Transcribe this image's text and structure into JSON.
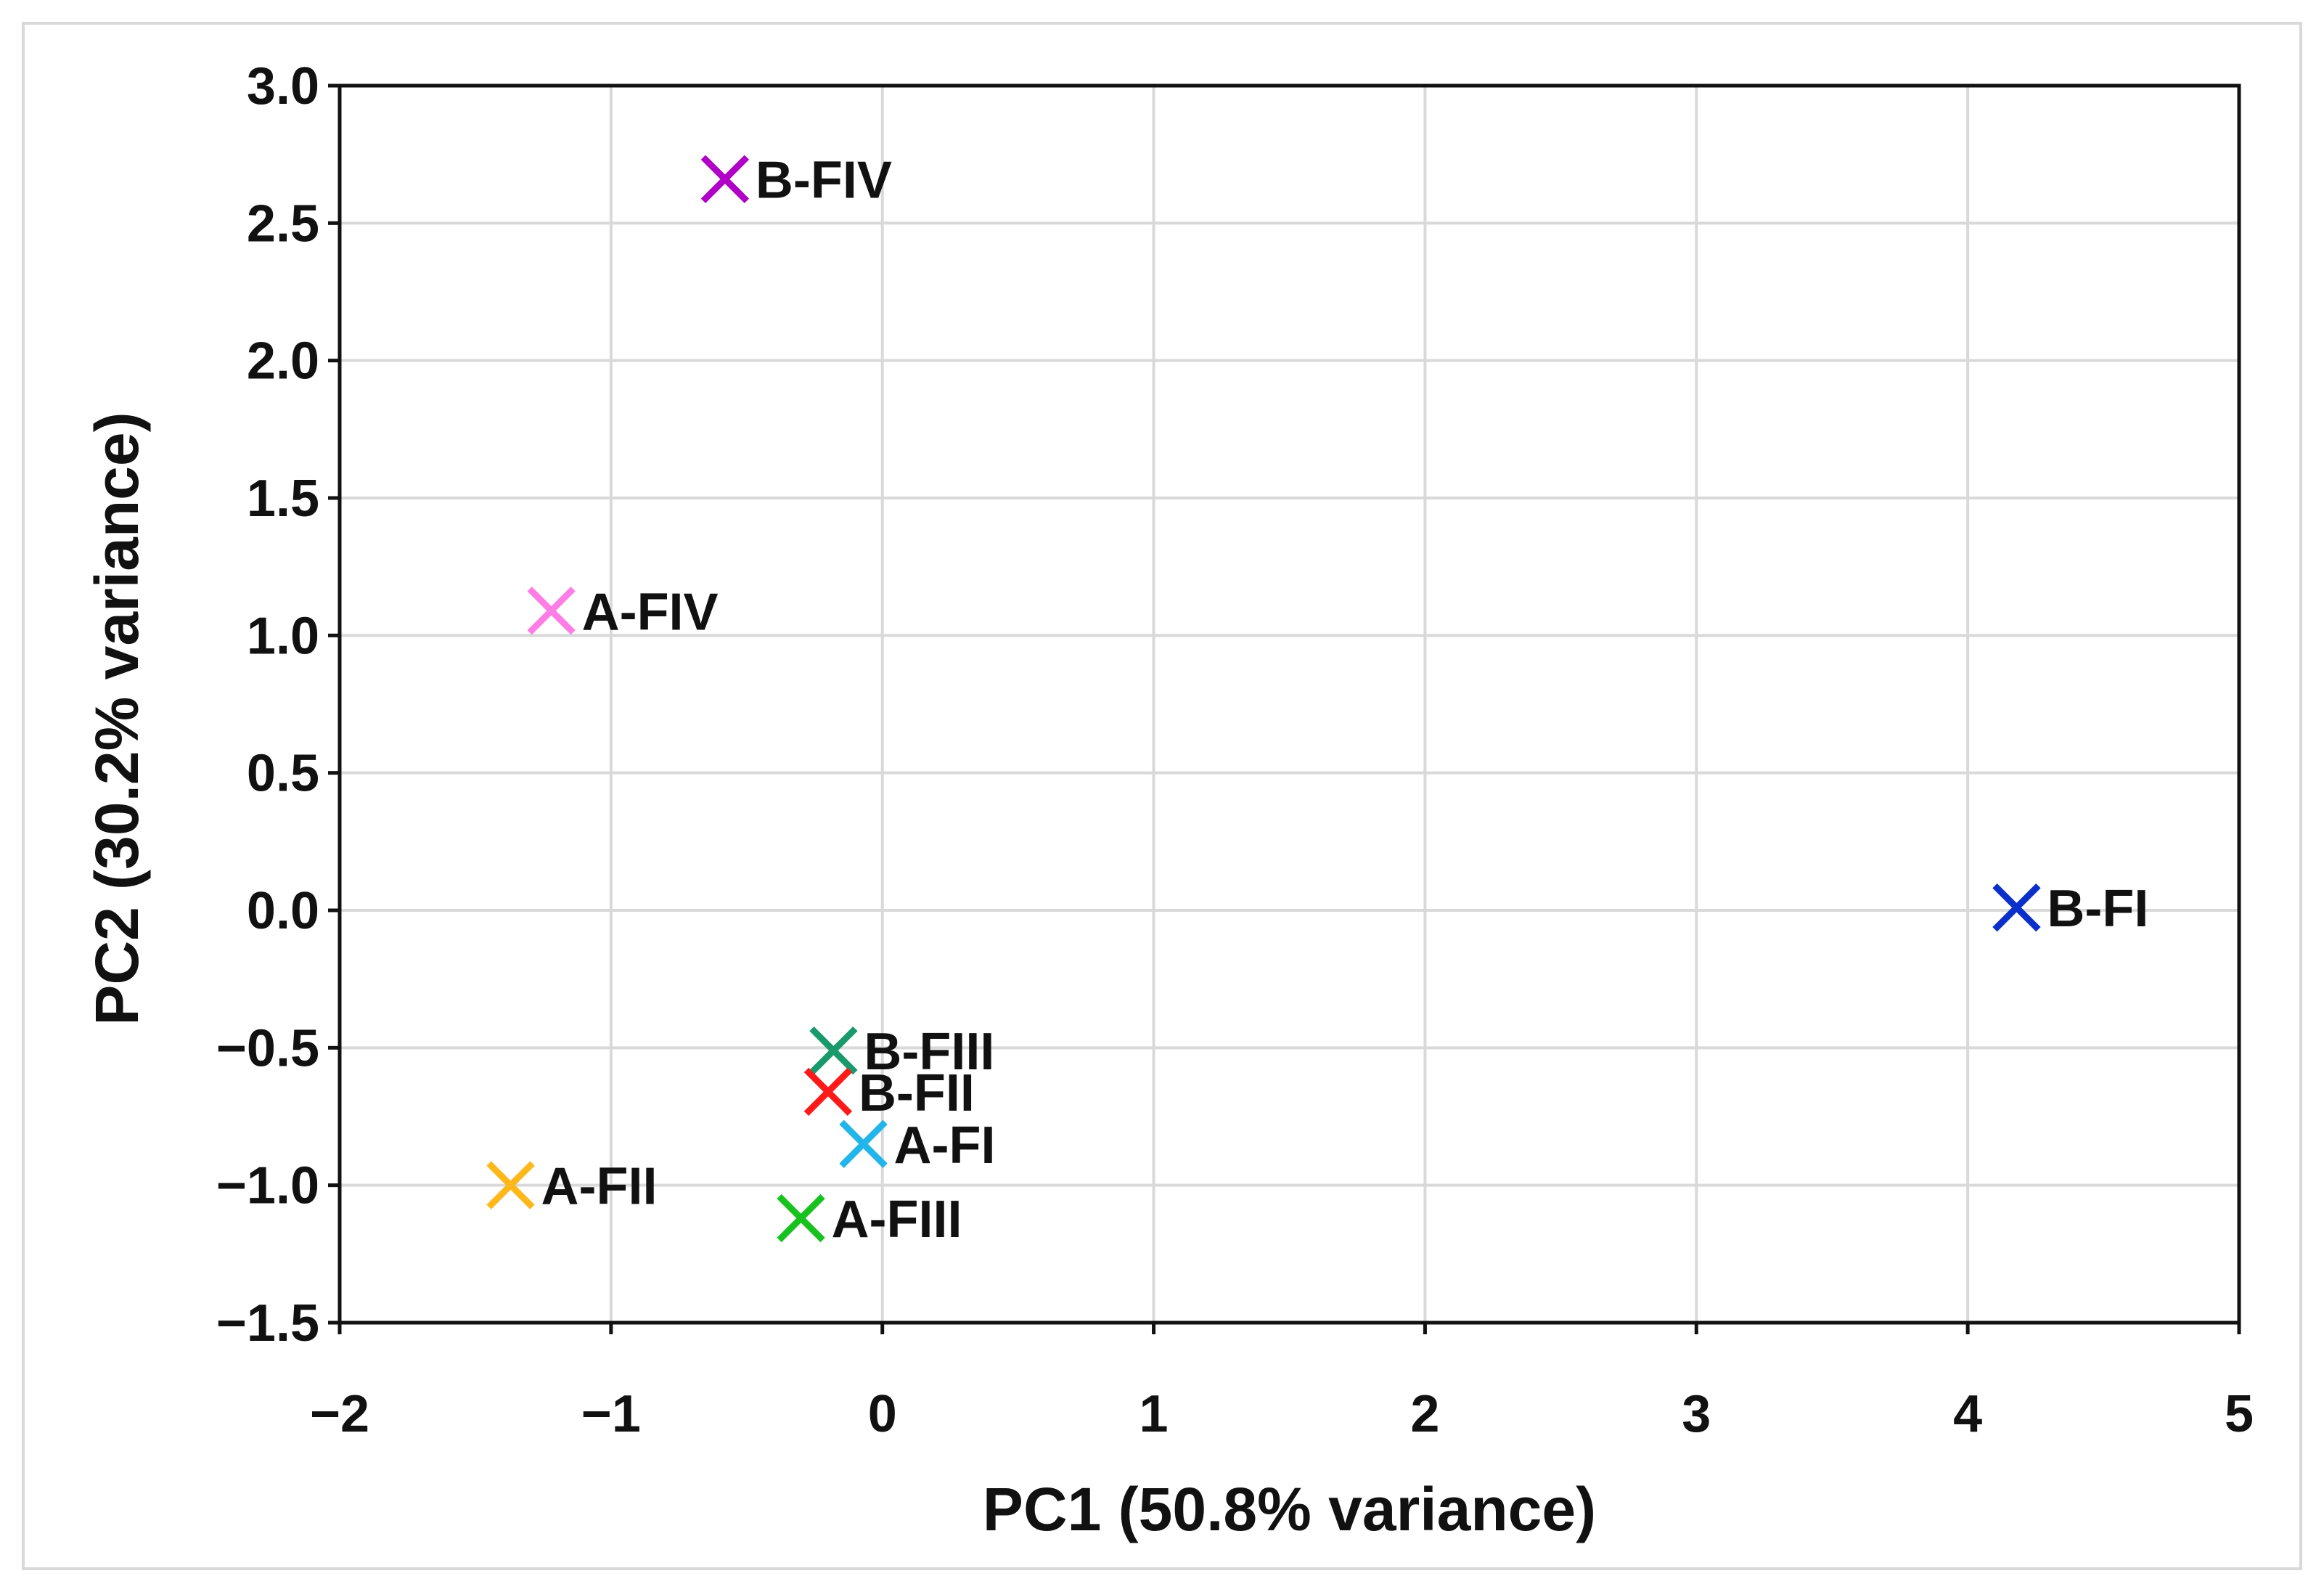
{
  "chart_data": {
    "type": "scatter",
    "title": "",
    "xlabel": "PC1 (50.8% variance)",
    "ylabel": "PC2 (30.2% variance)",
    "xlim": [
      -2,
      5
    ],
    "ylim": [
      -1.5,
      3.0
    ],
    "grid": true,
    "legend": "none",
    "x_ticks": [
      -2,
      -1,
      0,
      1,
      2,
      3,
      4,
      5
    ],
    "x_tick_labels": [
      "−2",
      "−1",
      "0",
      "1",
      "2",
      "3",
      "4",
      "5"
    ],
    "y_ticks": [
      -1.5,
      -1.0,
      -0.5,
      0.0,
      0.5,
      1.0,
      1.5,
      2.0,
      2.5,
      3.0
    ],
    "y_tick_labels": [
      "−1.5",
      "−1.0",
      "−0.5",
      "0.0",
      "0.5",
      "1.0",
      "1.5",
      "2.0",
      "2.5",
      "3.0"
    ],
    "marker": "x",
    "points": [
      {
        "label": "B-FIV",
        "x": -0.58,
        "y": 2.66,
        "color": "#b000c8"
      },
      {
        "label": "A-FIV",
        "x": -1.22,
        "y": 1.09,
        "color": "#ff7ee6"
      },
      {
        "label": "B-FI",
        "x": 4.18,
        "y": 0.01,
        "color": "#0b2fc9"
      },
      {
        "label": "B-FIII",
        "x": -0.18,
        "y": -0.51,
        "color": "#1a9a6c"
      },
      {
        "label": "B-FII",
        "x": -0.2,
        "y": -0.66,
        "color": "#ff1a1a"
      },
      {
        "label": "A-FI",
        "x": -0.07,
        "y": -0.85,
        "color": "#21b5ea"
      },
      {
        "label": "A-FII",
        "x": -1.37,
        "y": -1.0,
        "color": "#ffb81c"
      },
      {
        "label": "A-FIII",
        "x": -0.3,
        "y": -1.12,
        "color": "#18c21e"
      }
    ]
  }
}
